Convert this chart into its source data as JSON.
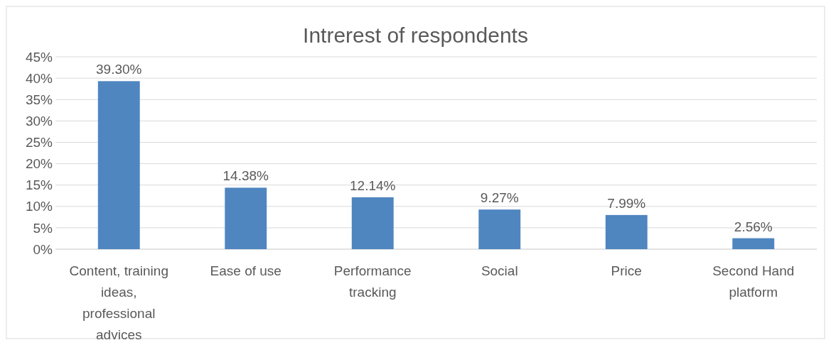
{
  "chart_data": {
    "type": "bar",
    "title": "Intrerest of respondents",
    "categories": [
      "Content, training ideas, professional advices",
      "Ease of use",
      "Performance tracking",
      "Social",
      "Price",
      "Second Hand platform"
    ],
    "values": [
      39.3,
      14.38,
      12.14,
      9.27,
      7.99,
      2.56
    ],
    "value_labels": [
      "39.30%",
      "14.38%",
      "12.14%",
      "9.27%",
      "7.99%",
      "2.56%"
    ],
    "color": "#4f86c0",
    "ylim": [
      0,
      45
    ],
    "yticks": [
      {
        "value": 0,
        "label": "0%"
      },
      {
        "value": 5,
        "label": "5%"
      },
      {
        "value": 10,
        "label": "10%"
      },
      {
        "value": 15,
        "label": "15%"
      },
      {
        "value": 20,
        "label": "20%"
      },
      {
        "value": 25,
        "label": "25%"
      },
      {
        "value": 30,
        "label": "30%"
      },
      {
        "value": 35,
        "label": "35%"
      },
      {
        "value": 40,
        "label": "40%"
      },
      {
        "value": 45,
        "label": "45%"
      }
    ],
    "grid": "y"
  }
}
